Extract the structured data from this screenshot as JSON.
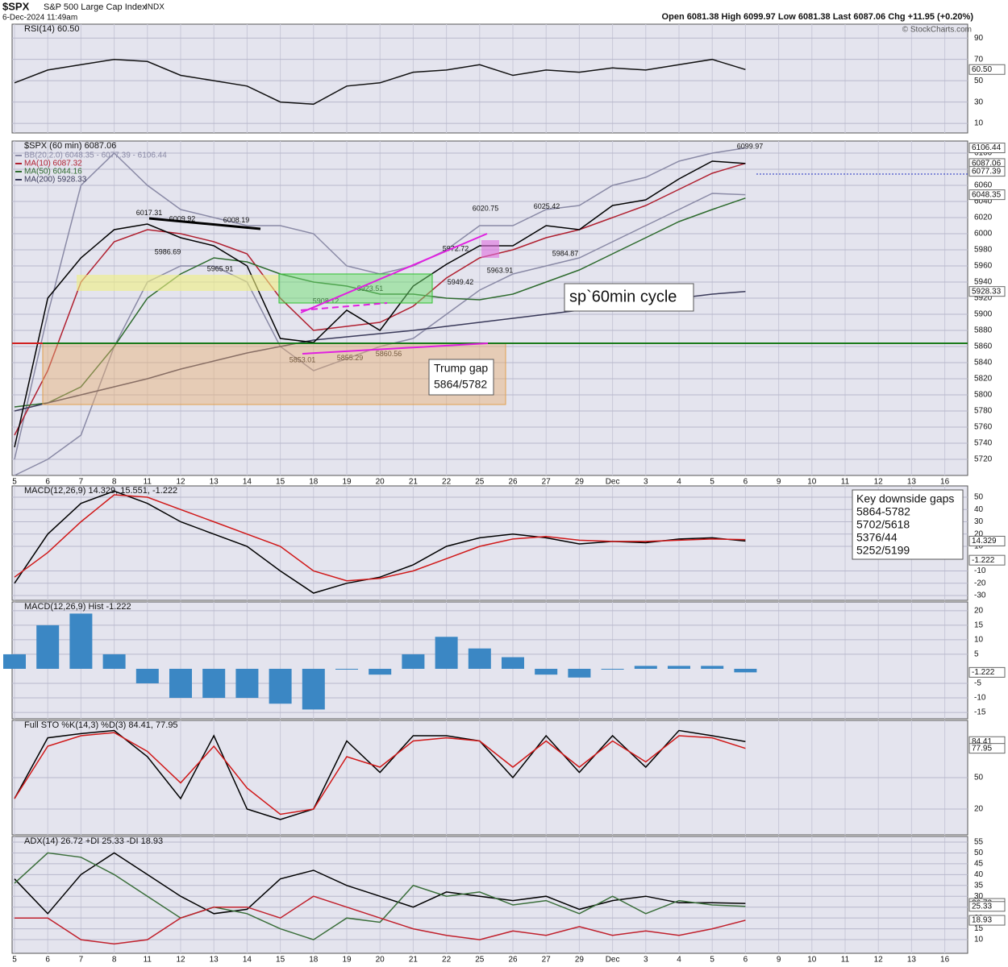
{
  "header": {
    "symbol": "$SPX",
    "name": "S&P 500 Large Cap Index",
    "exchange": "INDX",
    "date": "6-Dec-2024 11:49am",
    "quote": "Open 6081.38  High 6099.97  Low 6081.38  Last 6087.06  Chg +11.95 (+0.20%)",
    "credit": "© StockCharts.com"
  },
  "notes": {
    "cycle": "sp`60min cycle",
    "gap_title": "Trump gap",
    "gap_range": "5864/5782",
    "key_gaps": [
      "Key downside gaps",
      "5864-5782",
      "5702/5618",
      "5376/44",
      "5252/5199"
    ]
  },
  "chart_data": [
    {
      "type": "line",
      "title": "RSI(14) 60.50",
      "ylim": [
        1,
        103
      ],
      "yticks": [
        10,
        30,
        50,
        70,
        90
      ],
      "right_labels": [
        {
          "value": 60.5,
          "label": "60.50"
        }
      ],
      "series": [
        {
          "color": "#111111",
          "values": [
            48,
            60,
            65,
            70,
            68,
            55,
            50,
            45,
            30,
            28,
            45,
            48,
            58,
            60,
            65,
            55,
            60,
            58,
            62,
            60,
            65,
            70,
            60.5,
            null,
            null,
            null,
            null,
            null,
            null
          ]
        }
      ]
    },
    {
      "type": "line",
      "title": "$SPX (60 min) 6087.06",
      "categories": [
        "5",
        "6",
        "7",
        "8",
        "11",
        "12",
        "13",
        "14",
        "15",
        "18",
        "19",
        "20",
        "21",
        "22",
        "25",
        "26",
        "27",
        "29",
        "Dec",
        "3",
        "4",
        "5",
        "6",
        "9",
        "10",
        "11",
        "12",
        "13",
        "16"
      ],
      "ylim": [
        5700,
        6115
      ],
      "yticks": [
        5720,
        5740,
        5760,
        5780,
        5800,
        5820,
        5840,
        5860,
        5880,
        5900,
        5920,
        5940,
        5960,
        5980,
        6000,
        6020,
        6040,
        6060,
        6080,
        6100
      ],
      "right_labels": [
        6106.44,
        6087.06,
        6077.39,
        6048.35,
        5928.33
      ],
      "annotations": [
        6017.31,
        6009.92,
        6008.19,
        5986.69,
        5965.91,
        5908.12,
        5923.51,
        5853.01,
        5855.29,
        5860.56,
        5949.42,
        5972.72,
        6020.75,
        5963.91,
        6025.42,
        5984.87,
        6099.97
      ],
      "series": [
        {
          "name": "BB(20,2.0) 6048.35 - 6077.39 - 6106.44",
          "color": "#8a8aa6",
          "values": [
            5720,
            5900,
            6060,
            6100,
            6060,
            6030,
            6020,
            6010,
            6010,
            6000,
            5960,
            5950,
            5960,
            5980,
            6010,
            6010,
            6030,
            6035,
            6060,
            6070,
            6090,
            6100,
            6106.44,
            null,
            null,
            null,
            null,
            null,
            null
          ]
        },
        {
          "color": "#8a8aa6",
          "values": [
            5700,
            5720,
            5750,
            5860,
            5940,
            5960,
            5960,
            5940,
            5860,
            5830,
            5845,
            5860,
            5870,
            5900,
            5930,
            5950,
            5960,
            5970,
            5990,
            6010,
            6030,
            6050,
            6048.35,
            null,
            null,
            null,
            null,
            null,
            null
          ]
        },
        {
          "name": "MA(10) 6087.32",
          "color": "#b02030",
          "values": [
            5750,
            5830,
            5940,
            5990,
            6005,
            6000,
            5990,
            5975,
            5920,
            5880,
            5885,
            5890,
            5910,
            5945,
            5970,
            5980,
            5995,
            6005,
            6020,
            6035,
            6055,
            6075,
            6087.32,
            null,
            null,
            null,
            null,
            null,
            null
          ]
        },
        {
          "name": "MA(50) 6044.16",
          "color": "#2e6b2e",
          "values": [
            5785,
            5790,
            5810,
            5860,
            5920,
            5950,
            5970,
            5965,
            5950,
            5940,
            5935,
            5925,
            5925,
            5920,
            5918,
            5925,
            5940,
            5955,
            5975,
            5995,
            6015,
            6030,
            6044.16,
            null,
            null,
            null,
            null,
            null,
            null
          ]
        },
        {
          "name": "MA(200) 5928.33",
          "color": "#3a3a5a",
          "values": [
            5780,
            5790,
            5800,
            5810,
            5820,
            5832,
            5842,
            5852,
            5860,
            5868,
            5872,
            5876,
            5880,
            5885,
            5890,
            5895,
            5900,
            5905,
            5910,
            5915,
            5920,
            5925,
            5928.33,
            null,
            null,
            null,
            null,
            null,
            null
          ]
        },
        {
          "color": "#000000",
          "values": [
            5735,
            5920,
            5970,
            6005,
            6012,
            5995,
            5985,
            5960,
            5870,
            5865,
            5905,
            5880,
            5935,
            5962,
            5985,
            5985,
            6010,
            6005,
            6035,
            6042,
            6068,
            6090,
            6087.06,
            null,
            null,
            null,
            null,
            null,
            null
          ]
        }
      ]
    },
    {
      "type": "line",
      "title": "MACD(12,26,9) 14.329, 15.551, -1.222",
      "ylim": [
        -33.9,
        59.2
      ],
      "yticks": [
        -30,
        -20,
        -10,
        10,
        20,
        30,
        40,
        50
      ],
      "right_labels": [
        14.329,
        -1.222
      ],
      "series": [
        {
          "color": "#000000",
          "values": [
            -20,
            20,
            45,
            55,
            45,
            30,
            20,
            10,
            -10,
            -28,
            -20,
            -15,
            -5,
            10,
            17,
            20,
            17,
            12,
            14,
            13,
            16,
            17,
            14.329,
            null,
            null,
            null,
            null,
            null,
            null
          ]
        },
        {
          "color": "#d01818",
          "values": [
            -15,
            5,
            30,
            52,
            50,
            40,
            30,
            20,
            10,
            -10,
            -18,
            -16,
            -10,
            0,
            10,
            16,
            18,
            15,
            14,
            14,
            15,
            16,
            15.551,
            null,
            null,
            null,
            null,
            null,
            null
          ]
        }
      ]
    },
    {
      "type": "bar",
      "title": "MACD(12,26,9) Hist -1.222",
      "ylim": [
        -17.2,
        23
      ],
      "yticks": [
        -15,
        -10,
        -5,
        5,
        10,
        15,
        20
      ],
      "right_labels": [
        -1.222
      ],
      "color": "#3b87c4",
      "values": [
        5,
        15,
        19,
        5,
        -5,
        -10,
        -10,
        -10,
        -12,
        -14,
        0,
        -2,
        5,
        11,
        7,
        4,
        -2,
        -3,
        0,
        1,
        1,
        1,
        -1.222,
        null,
        null,
        null,
        null,
        null,
        null
      ]
    },
    {
      "type": "line",
      "title": "Full STO %K(14,3) %D(3) 84.41, 77.95",
      "ylim": [
        -4.6,
        104.6
      ],
      "yticks": [
        20,
        50
      ],
      "right_labels": [
        84.41,
        77.95
      ],
      "series": [
        {
          "color": "#000000",
          "values": [
            30,
            88,
            92,
            95,
            70,
            30,
            90,
            20,
            10,
            20,
            85,
            55,
            90,
            90,
            85,
            50,
            90,
            55,
            90,
            60,
            95,
            90,
            84.41,
            null,
            null,
            null,
            null,
            null,
            null
          ]
        },
        {
          "color": "#d01818",
          "values": [
            30,
            80,
            90,
            93,
            75,
            45,
            80,
            40,
            15,
            20,
            70,
            60,
            85,
            88,
            85,
            60,
            85,
            60,
            85,
            65,
            90,
            88,
            77.95,
            null,
            null,
            null,
            null,
            null,
            null
          ]
        }
      ]
    },
    {
      "type": "line",
      "title": "ADX(14) 26.72 +DI 25.33 -DI 18.93",
      "categories": [
        "5",
        "6",
        "7",
        "8",
        "11",
        "12",
        "13",
        "14",
        "15",
        "18",
        "19",
        "20",
        "21",
        "22",
        "25",
        "26",
        "27",
        "29",
        "Dec",
        "3",
        "4",
        "5",
        "6",
        "9",
        "10",
        "11",
        "12",
        "13",
        "16"
      ],
      "ylim": [
        3.7,
        57.6
      ],
      "yticks": [
        10,
        15,
        20,
        25,
        30,
        35,
        40,
        45,
        50,
        55
      ],
      "right_labels": [
        26.72,
        25.33,
        18.93
      ],
      "series": [
        {
          "color": "#000000",
          "values": [
            38,
            22,
            40,
            50,
            40,
            30,
            22,
            24,
            38,
            42,
            35,
            30,
            25,
            32,
            30,
            28,
            30,
            24,
            28,
            30,
            27,
            27,
            26.72,
            null,
            null,
            null,
            null,
            null,
            null
          ]
        },
        {
          "color": "#3a6e3a",
          "values": [
            36,
            50,
            48,
            40,
            30,
            20,
            25,
            22,
            15,
            10,
            20,
            18,
            35,
            30,
            32,
            26,
            28,
            22,
            30,
            22,
            28,
            26,
            25.33,
            null,
            null,
            null,
            null,
            null,
            null
          ]
        },
        {
          "color": "#c0202c",
          "values": [
            20,
            20,
            10,
            8,
            10,
            20,
            25,
            25,
            20,
            30,
            25,
            20,
            15,
            12,
            10,
            14,
            12,
            16,
            12,
            14,
            12,
            15,
            18.93,
            null,
            null,
            null,
            null,
            null,
            null
          ]
        }
      ]
    }
  ]
}
